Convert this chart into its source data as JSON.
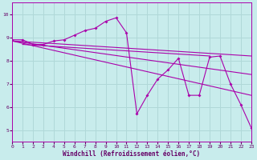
{
  "xlabel": "Windchill (Refroidissement éolien,°C)",
  "bg_color": "#c8ecec",
  "grid_color": "#b0d8d8",
  "line_color": "#aa00aa",
  "xlim": [
    0,
    23
  ],
  "ylim": [
    4.5,
    10.5
  ],
  "yticks": [
    5,
    6,
    7,
    8,
    9,
    10
  ],
  "xticks": [
    0,
    1,
    2,
    3,
    4,
    5,
    6,
    7,
    8,
    9,
    10,
    11,
    12,
    13,
    14,
    15,
    16,
    17,
    18,
    19,
    20,
    21,
    22,
    23
  ],
  "series_main": {
    "x": [
      0,
      1,
      2,
      3,
      4,
      5,
      6,
      7,
      8,
      9,
      10,
      11,
      12,
      13,
      14,
      15,
      16,
      17,
      18,
      19,
      20,
      21,
      22,
      23
    ],
    "y": [
      8.9,
      8.9,
      8.7,
      8.7,
      8.85,
      8.9,
      9.1,
      9.3,
      9.4,
      9.7,
      9.85,
      9.2,
      5.7,
      6.5,
      7.2,
      7.6,
      8.1,
      6.5,
      6.5,
      8.15,
      8.2,
      7.0,
      6.1,
      5.1
    ]
  },
  "trend_lines": [
    {
      "x": [
        0,
        23
      ],
      "y": [
        8.85,
        8.2
      ]
    },
    {
      "x": [
        0,
        23
      ],
      "y": [
        8.85,
        7.4
      ]
    },
    {
      "x": [
        0,
        23
      ],
      "y": [
        8.85,
        6.5
      ]
    }
  ],
  "horiz_line": {
    "x": [
      1,
      19
    ],
    "y": [
      8.7,
      8.2
    ]
  }
}
